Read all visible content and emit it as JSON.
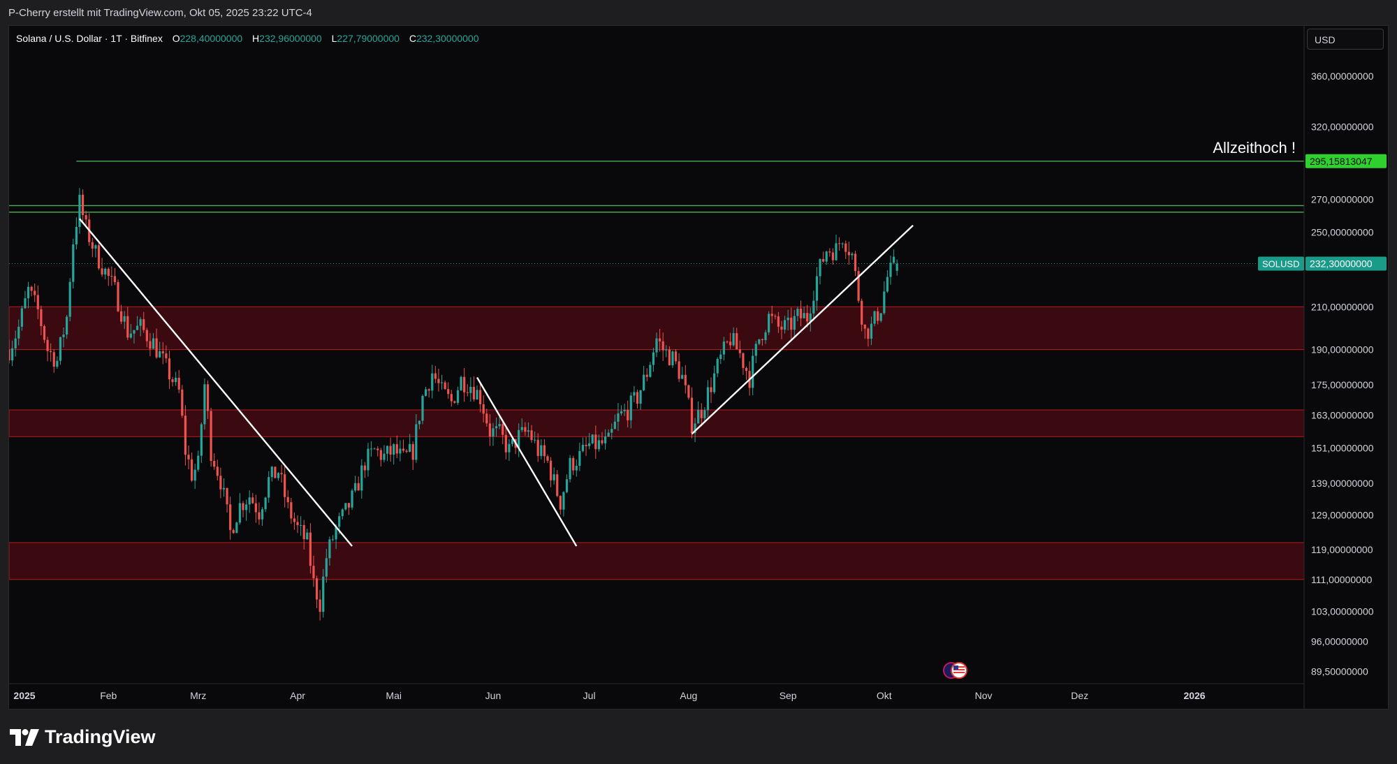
{
  "header": {
    "caption": "P-Cherry erstellt mit TradingView.com, Okt 05, 2025 23:22 UTC-4"
  },
  "legend": {
    "symbol": "Solana / U.S. Dollar · 1T · Bitfinex",
    "open_label": "O",
    "open": "228,40000000",
    "high_label": "H",
    "high": "232,96000000",
    "low_label": "L",
    "low": "227,79000000",
    "close_label": "C",
    "close": "232,30000000"
  },
  "currency": "USD",
  "footer": {
    "brand": "TradingView"
  },
  "colors": {
    "up": "#26a69a",
    "down": "#ef5350",
    "zone_fill": "#3a0a10",
    "zone_border": "#b71c1c",
    "resistance": "#4caf50",
    "ath_label": "#2fd12f",
    "price_label": "#1a9a88",
    "background": "#09090b"
  },
  "chart_data": {
    "type": "candlestick",
    "symbol": "SOLUSD",
    "interval": "1T",
    "exchange": "Bitfinex",
    "scale": "log",
    "y_ticks": [
      "360,00000000",
      "320,00000000",
      "295,15813047",
      "270,00000000",
      "250,00000000",
      "232,30000000",
      "210,00000000",
      "190,00000000",
      "175,00000000",
      "163,00000000",
      "151,00000000",
      "139,00000000",
      "129,00000000",
      "119,00000000",
      "111,00000000",
      "103,00000000",
      "96,00000000",
      "89,50000000"
    ],
    "y_tick_values": [
      360,
      320,
      270,
      250,
      210,
      190,
      175,
      163,
      151,
      139,
      129,
      119,
      111,
      103,
      96,
      89.5
    ],
    "x_ticks": [
      {
        "label": "2025",
        "date": "2025-01-01"
      },
      {
        "label": "Feb",
        "date": "2025-02-01"
      },
      {
        "label": "Mrz",
        "date": "2025-03-01"
      },
      {
        "label": "Apr",
        "date": "2025-04-01"
      },
      {
        "label": "Mai",
        "date": "2025-05-01"
      },
      {
        "label": "Jun",
        "date": "2025-06-01"
      },
      {
        "label": "Jul",
        "date": "2025-07-01"
      },
      {
        "label": "Aug",
        "date": "2025-08-01"
      },
      {
        "label": "Sep",
        "date": "2025-09-01"
      },
      {
        "label": "Okt",
        "date": "2025-10-01"
      },
      {
        "label": "Nov",
        "date": "2025-11-01"
      },
      {
        "label": "Dez",
        "date": "2025-12-01"
      },
      {
        "label": "2026",
        "date": "2026-01-01"
      }
    ],
    "date_range": [
      "2025-01-01",
      "2026-02-09"
    ],
    "price_range": [
      87,
      405
    ],
    "all_time_high": {
      "value": 295.15813047,
      "label": "295,15813047",
      "annotation": "Allzeithoch !"
    },
    "last_price": {
      "symbol": "SOLUSD",
      "value": 232.3,
      "label": "232,30000000"
    },
    "resistance_lines": [
      262,
      266
    ],
    "zones": [
      {
        "from": 190,
        "to": 210
      },
      {
        "from": 155,
        "to": 165
      },
      {
        "from": 111,
        "to": 121
      }
    ],
    "trendlines": [
      {
        "from": {
          "date": "2025-01-23",
          "price": 258
        },
        "to": {
          "date": "2025-04-18",
          "price": 120
        }
      },
      {
        "from": {
          "date": "2025-05-27",
          "price": 178
        },
        "to": {
          "date": "2025-06-27",
          "price": 120
        }
      },
      {
        "from": {
          "date": "2025-08-02",
          "price": 156
        },
        "to": {
          "date": "2025-10-10",
          "price": 254
        }
      }
    ],
    "trend": [
      [
        "2025-01-01",
        190
      ],
      [
        "2025-01-04",
        200
      ],
      [
        "2025-01-07",
        218
      ],
      [
        "2025-01-10",
        208
      ],
      [
        "2025-01-13",
        190
      ],
      [
        "2025-01-16",
        185
      ],
      [
        "2025-01-19",
        205
      ],
      [
        "2025-01-21",
        245
      ],
      [
        "2025-01-23",
        268
      ],
      [
        "2025-01-25",
        252
      ],
      [
        "2025-01-28",
        238
      ],
      [
        "2025-01-31",
        228
      ],
      [
        "2025-02-03",
        218
      ],
      [
        "2025-02-07",
        198
      ],
      [
        "2025-02-11",
        200
      ],
      [
        "2025-02-15",
        193
      ],
      [
        "2025-02-19",
        182
      ],
      [
        "2025-02-23",
        172
      ],
      [
        "2025-02-25",
        150
      ],
      [
        "2025-02-27",
        142
      ],
      [
        "2025-03-01",
        145
      ],
      [
        "2025-03-03",
        175
      ],
      [
        "2025-03-05",
        150
      ],
      [
        "2025-03-08",
        140
      ],
      [
        "2025-03-11",
        124
      ],
      [
        "2025-03-14",
        132
      ],
      [
        "2025-03-17",
        135
      ],
      [
        "2025-03-20",
        130
      ],
      [
        "2025-03-23",
        140
      ],
      [
        "2025-03-26",
        143
      ],
      [
        "2025-03-29",
        131
      ],
      [
        "2025-04-01",
        125
      ],
      [
        "2025-04-04",
        121
      ],
      [
        "2025-04-06",
        110
      ],
      [
        "2025-04-08",
        105
      ],
      [
        "2025-04-10",
        117
      ],
      [
        "2025-04-13",
        125
      ],
      [
        "2025-04-16",
        130
      ],
      [
        "2025-04-19",
        136
      ],
      [
        "2025-04-22",
        146
      ],
      [
        "2025-04-25",
        150
      ],
      [
        "2025-04-28",
        148
      ],
      [
        "2025-05-01",
        150
      ],
      [
        "2025-05-04",
        147
      ],
      [
        "2025-05-07",
        150
      ],
      [
        "2025-05-10",
        170
      ],
      [
        "2025-05-13",
        180
      ],
      [
        "2025-05-16",
        172
      ],
      [
        "2025-05-19",
        168
      ],
      [
        "2025-05-22",
        177
      ],
      [
        "2025-05-25",
        175
      ],
      [
        "2025-05-28",
        170
      ],
      [
        "2025-05-31",
        157
      ],
      [
        "2025-06-03",
        156
      ],
      [
        "2025-06-06",
        150
      ],
      [
        "2025-06-09",
        155
      ],
      [
        "2025-06-12",
        157
      ],
      [
        "2025-06-15",
        150
      ],
      [
        "2025-06-18",
        146
      ],
      [
        "2025-06-21",
        136
      ],
      [
        "2025-06-22",
        133
      ],
      [
        "2025-06-25",
        145
      ],
      [
        "2025-06-28",
        148
      ],
      [
        "2025-07-01",
        152
      ],
      [
        "2025-07-04",
        152
      ],
      [
        "2025-07-07",
        153
      ],
      [
        "2025-07-10",
        162
      ],
      [
        "2025-07-13",
        165
      ],
      [
        "2025-07-16",
        170
      ],
      [
        "2025-07-19",
        180
      ],
      [
        "2025-07-22",
        195
      ],
      [
        "2025-07-24",
        190
      ],
      [
        "2025-07-27",
        186
      ],
      [
        "2025-07-30",
        178
      ],
      [
        "2025-08-02",
        160
      ],
      [
        "2025-08-05",
        165
      ],
      [
        "2025-08-08",
        175
      ],
      [
        "2025-08-11",
        186
      ],
      [
        "2025-08-14",
        195
      ],
      [
        "2025-08-17",
        188
      ],
      [
        "2025-08-20",
        178
      ],
      [
        "2025-08-23",
        195
      ],
      [
        "2025-08-26",
        205
      ],
      [
        "2025-08-29",
        200
      ],
      [
        "2025-09-01",
        200
      ],
      [
        "2025-09-04",
        205
      ],
      [
        "2025-09-07",
        205
      ],
      [
        "2025-09-10",
        225
      ],
      [
        "2025-09-13",
        240
      ],
      [
        "2025-09-16",
        240
      ],
      [
        "2025-09-18",
        248
      ],
      [
        "2025-09-21",
        237
      ],
      [
        "2025-09-23",
        215
      ],
      [
        "2025-09-25",
        198
      ],
      [
        "2025-09-27",
        200
      ],
      [
        "2025-09-30",
        210
      ],
      [
        "2025-10-02",
        225
      ],
      [
        "2025-10-04",
        231
      ],
      [
        "2025-10-05",
        232.3
      ]
    ]
  }
}
